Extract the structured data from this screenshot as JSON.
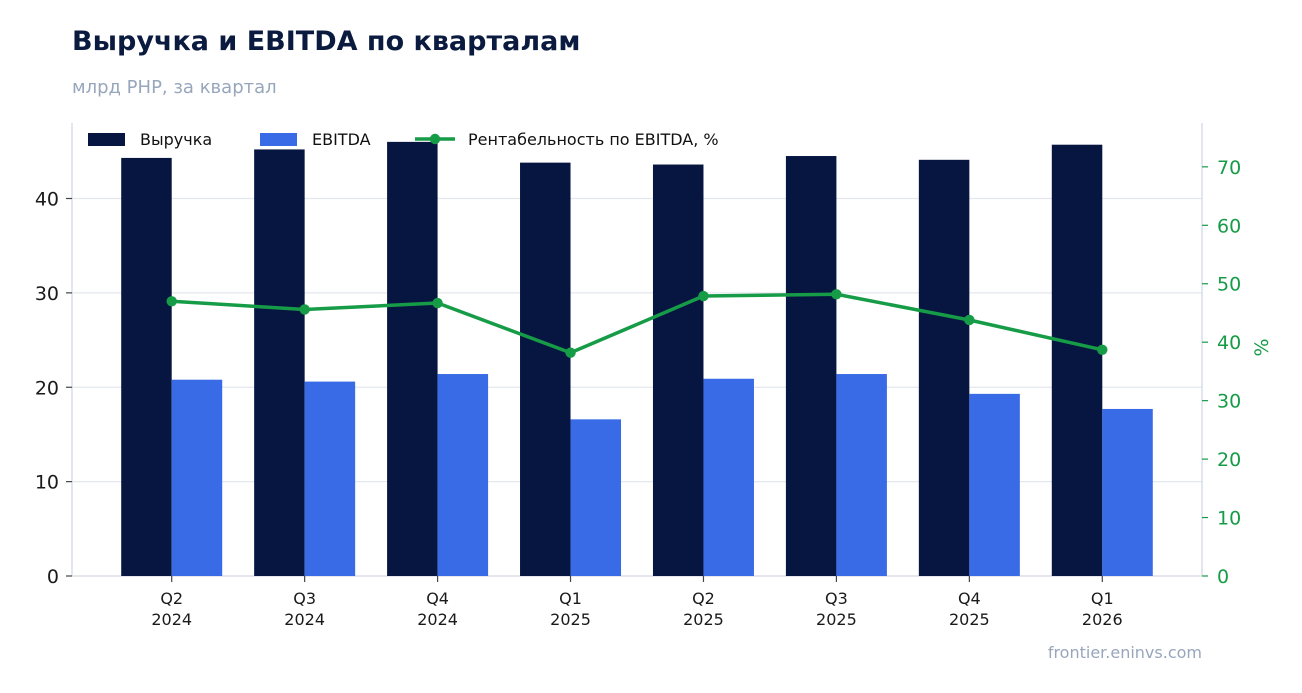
{
  "title": "Выручка и EBITDA по кварталам",
  "subtitle": "млрд РНР, за квартал",
  "source": "frontier.eninvs.com",
  "colors": {
    "revenue": "#061640",
    "ebitda": "#3a6be6",
    "margin": "#169c47",
    "grid": "#e3e8ef",
    "axis": "#d4dae3"
  },
  "chart_data": {
    "type": "bar",
    "categories": [
      [
        "Q2",
        "2024"
      ],
      [
        "Q3",
        "2024"
      ],
      [
        "Q4",
        "2024"
      ],
      [
        "Q1",
        "2025"
      ],
      [
        "Q2",
        "2025"
      ],
      [
        "Q3",
        "2025"
      ],
      [
        "Q4",
        "2025"
      ],
      [
        "Q1",
        "2026"
      ]
    ],
    "series": [
      {
        "name": "Выручка",
        "kind": "bar",
        "axis": "left",
        "values": [
          44.3,
          45.2,
          46.0,
          43.8,
          43.6,
          44.5,
          44.1,
          45.7
        ]
      },
      {
        "name": "EBITDA",
        "kind": "bar",
        "axis": "left",
        "values": [
          20.8,
          20.6,
          21.4,
          16.6,
          20.9,
          21.4,
          19.3,
          17.7
        ]
      },
      {
        "name": "Рентабельность по EBITDA, %",
        "kind": "line",
        "axis": "right",
        "values": [
          47.0,
          45.6,
          46.7,
          38.2,
          47.9,
          48.2,
          43.8,
          38.7
        ]
      }
    ],
    "ylabel": "",
    "y2label": "%",
    "ylim": [
      0,
      48
    ],
    "y2lim": [
      0,
      77.5
    ],
    "yticks": [
      0,
      10,
      20,
      30,
      40
    ],
    "y2ticks": [
      0,
      10,
      20,
      30,
      40,
      50,
      60,
      70
    ],
    "grid": true,
    "legend": "top-left"
  }
}
